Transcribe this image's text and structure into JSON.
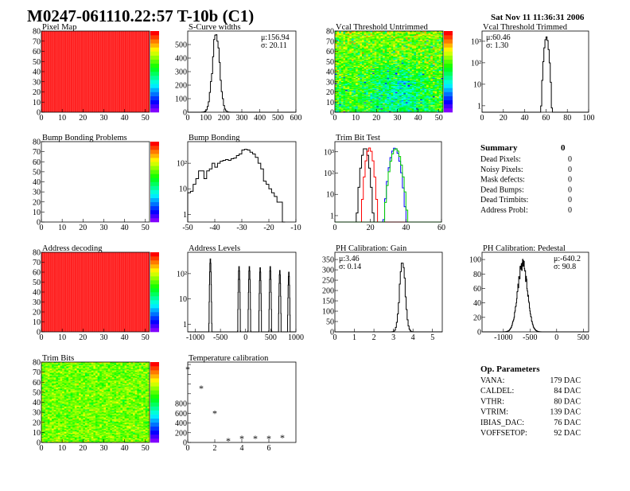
{
  "header": {
    "title": "M0247-061110.22:57 T-10b (C1)",
    "date": "Sat Nov 11 11:36:31 2006"
  },
  "chart_data": [
    {
      "id": "pixel-map",
      "type": "heatmap",
      "title": "Pixel Map",
      "xlim": [
        0,
        52
      ],
      "ylim": [
        0,
        80
      ],
      "xticks": [
        0,
        10,
        20,
        30,
        40,
        50
      ],
      "yticks": [
        0,
        10,
        20,
        30,
        40,
        50,
        60,
        70,
        80
      ],
      "pattern": "uniform",
      "value": 10,
      "zlim": [
        0,
        10
      ]
    },
    {
      "id": "s-curve-widths",
      "type": "bar",
      "title": "S-Curve widths",
      "xlim": [
        0,
        600
      ],
      "ylim": [
        0,
        600
      ],
      "xticks": [
        0,
        100,
        200,
        300,
        400,
        500,
        600
      ],
      "yticks": [
        0,
        100,
        200,
        300,
        400,
        500
      ],
      "mean": 156.94,
      "sigma": 20.11,
      "peak": 560,
      "bin_width": 6,
      "stats": [
        "μ:156.94",
        "σ: 20.11"
      ],
      "stats_pos": "top-right"
    },
    {
      "id": "vcal-untrimmed",
      "type": "heatmap",
      "title": "Vcal Threshold Untrimmed",
      "xlim": [
        0,
        52
      ],
      "ylim": [
        0,
        80
      ],
      "xticks": [
        0,
        10,
        20,
        30,
        40,
        50
      ],
      "yticks": [
        0,
        10,
        20,
        30,
        40,
        50,
        60,
        70,
        80
      ],
      "pattern": "noisy",
      "zlim": [
        90,
        130
      ],
      "center": 112,
      "spread": 5
    },
    {
      "id": "vcal-trimmed",
      "type": "bar",
      "title": "Vcal Threshold Trimmed",
      "log": true,
      "xlim": [
        0,
        100
      ],
      "ylim": [
        0.5,
        3000
      ],
      "xticks": [
        0,
        20,
        40,
        60,
        80,
        100
      ],
      "yticks": [
        1,
        10,
        100,
        1000
      ],
      "ytick_labels": [
        "1",
        "10",
        "10²",
        "10³"
      ],
      "mean": 60.46,
      "sigma": 1.3,
      "peak": 1500,
      "bin_width": 1,
      "stats": [
        "μ:60.46",
        "σ: 1.30"
      ],
      "stats_pos": "top-left"
    },
    {
      "id": "bump-bonding-problems",
      "type": "heatmap",
      "title": "Bump Bonding Problems",
      "xlim": [
        0,
        52
      ],
      "ylim": [
        0,
        80
      ],
      "xticks": [
        0,
        10,
        20,
        30,
        40,
        50
      ],
      "yticks": [
        0,
        10,
        20,
        30,
        40,
        50,
        60,
        70,
        80
      ],
      "pattern": "empty",
      "zlim": [
        0,
        1
      ]
    },
    {
      "id": "bump-bonding",
      "type": "bar",
      "title": "Bump Bonding",
      "log": true,
      "xlim": [
        -50,
        -10
      ],
      "ylim": [
        0.5,
        700
      ],
      "xticks": [
        -50,
        -40,
        -30,
        -20,
        -10
      ],
      "yticks": [
        1,
        10,
        100
      ],
      "ytick_labels": [
        "1",
        "10",
        "10²"
      ],
      "bin_start": -50,
      "bin_width": 1,
      "values": [
        7,
        8,
        15,
        25,
        50,
        50,
        25,
        50,
        60,
        100,
        70,
        100,
        120,
        130,
        140,
        130,
        150,
        160,
        200,
        230,
        330,
        350,
        330,
        270,
        230,
        170,
        100,
        60,
        20,
        15,
        10,
        7,
        5,
        3,
        3,
        0.5
      ]
    },
    {
      "id": "trim-bit-test",
      "type": "bar",
      "title": "Trim Bit Test",
      "log": true,
      "xlim": [
        0,
        60
      ],
      "ylim": [
        0.5,
        3000
      ],
      "xticks": [
        0,
        20,
        40,
        60
      ],
      "yticks": [
        1,
        10,
        100,
        1000
      ],
      "ytick_labels": [
        "1",
        "10",
        "10²",
        "10³"
      ],
      "bin_width": 1,
      "series": [
        {
          "mean": 17,
          "sigma": 1.2,
          "peak": 1500,
          "color": "#000000"
        },
        {
          "mean": 19.5,
          "sigma": 1.2,
          "peak": 1500,
          "color": "#ff0000"
        },
        {
          "mean": 33.8,
          "sigma": 1.6,
          "peak": 1500,
          "color": "#0000ff"
        },
        {
          "mean": 34.3,
          "sigma": 1.7,
          "peak": 1400,
          "color": "#00cc00"
        }
      ]
    },
    {
      "id": "address-decoding",
      "type": "heatmap",
      "title": "Address decoding",
      "xlim": [
        0,
        52
      ],
      "ylim": [
        0,
        80
      ],
      "xticks": [
        0,
        10,
        20,
        30,
        40,
        50
      ],
      "yticks": [
        0,
        10,
        20,
        30,
        40,
        50,
        60,
        70,
        80
      ],
      "pattern": "uniform",
      "value": 1,
      "zlim": [
        0,
        1
      ]
    },
    {
      "id": "address-levels",
      "type": "bar",
      "title": "Address Levels",
      "log": true,
      "xlim": [
        -1150,
        1000
      ],
      "ylim": [
        0.5,
        700
      ],
      "xticks": [
        -1000,
        -500,
        0,
        500,
        1000
      ],
      "yticks": [
        1,
        10,
        100
      ],
      "ytick_labels": [
        "1",
        "10",
        "10²"
      ],
      "bin_width": 5,
      "peaks": [
        {
          "x": -700,
          "peak": 400
        },
        {
          "x": -130,
          "peak": 200
        },
        {
          "x": 75,
          "peak": 200
        },
        {
          "x": 290,
          "peak": 180
        },
        {
          "x": 490,
          "peak": 200
        },
        {
          "x": 680,
          "peak": 140
        },
        {
          "x": 860,
          "peak": 120
        }
      ],
      "peak_sigma": 8
    },
    {
      "id": "ph-gain",
      "type": "bar",
      "title": "PH Calibration: Gain",
      "xlim": [
        0,
        5.5
      ],
      "ylim": [
        0,
        385
      ],
      "xticks": [
        0,
        1,
        2,
        3,
        4,
        5
      ],
      "yticks": [
        0,
        50,
        100,
        150,
        200,
        250,
        300,
        350
      ],
      "mean": 3.46,
      "sigma": 0.14,
      "peak": 370,
      "bin_width": 0.05,
      "stats": [
        "μ:3.46",
        "σ: 0.14"
      ],
      "stats_pos": "top-left"
    },
    {
      "id": "ph-pedestal",
      "type": "bar",
      "title": "PH Calibration: Pedestal",
      "xlim": [
        -1400,
        600
      ],
      "ylim": [
        0,
        110
      ],
      "xticks": [
        -1000,
        -500,
        0,
        500
      ],
      "yticks": [
        0,
        20,
        40,
        60,
        80,
        100
      ],
      "mean": -640.2,
      "sigma": 90.8,
      "peak": 95,
      "bin_width": 8,
      "stats": [
        "μ:-640.2",
        "σ: 90.8"
      ],
      "stats_pos": "top-right"
    },
    {
      "id": "trim-bits",
      "type": "heatmap",
      "title": "Trim Bits",
      "xlim": [
        0,
        52
      ],
      "ylim": [
        0,
        80
      ],
      "xticks": [
        0,
        10,
        20,
        30,
        40,
        50
      ],
      "yticks": [
        0,
        10,
        20,
        30,
        40,
        50,
        60,
        70,
        80
      ],
      "pattern": "noisy",
      "zlim": [
        0,
        16
      ],
      "center": 10.5,
      "spread": 1.3
    },
    {
      "id": "temperature-calibration",
      "type": "scatter",
      "title": "Temperature calibration",
      "xlim": [
        0,
        8
      ],
      "ylim": [
        0,
        1650
      ],
      "xticks": [
        0,
        2,
        4,
        6
      ],
      "yticks": [
        0,
        200,
        400,
        600,
        800
      ],
      "yticks_unlabeled": [
        1000,
        1200,
        1400,
        1600
      ],
      "x": [
        0,
        1,
        2,
        3,
        4,
        5,
        6,
        7
      ],
      "y": [
        1500,
        1110,
        600,
        30,
        80,
        80,
        80,
        100
      ]
    }
  ],
  "summary": {
    "title": "Summary",
    "total": "0",
    "rows": [
      {
        "label": "Dead Pixels:",
        "value": "0"
      },
      {
        "label": "Noisy Pixels:",
        "value": "0"
      },
      {
        "label": "Mask defects:",
        "value": "0"
      },
      {
        "label": "Dead Bumps:",
        "value": "0"
      },
      {
        "label": "Dead Trimbits:",
        "value": "0"
      },
      {
        "label": "Address Probl:",
        "value": "0"
      }
    ]
  },
  "op_parameters": {
    "title": "Op. Parameters",
    "rows": [
      {
        "label": "VANA:",
        "value": "179 DAC"
      },
      {
        "label": "CALDEL:",
        "value": "84 DAC"
      },
      {
        "label": "VTHR:",
        "value": "80 DAC"
      },
      {
        "label": "VTRIM:",
        "value": "139 DAC"
      },
      {
        "label": "IBIAS_DAC:",
        "value": "76 DAC"
      },
      {
        "label": "VOFFSETOP:",
        "value": "92 DAC"
      }
    ]
  }
}
